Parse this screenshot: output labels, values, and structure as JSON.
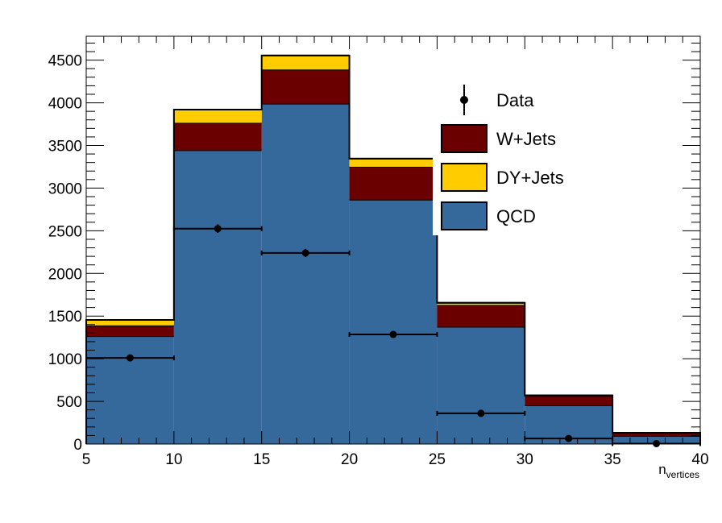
{
  "chart_data": {
    "type": "bar",
    "stacked": true,
    "bin_edges": [
      5,
      10,
      15,
      20,
      25,
      30,
      35,
      40
    ],
    "xlim": [
      5,
      40
    ],
    "ylim": [
      0,
      4780
    ],
    "xticks": [
      5,
      10,
      15,
      20,
      25,
      30,
      35,
      40
    ],
    "yticks": [
      0,
      500,
      1000,
      1500,
      2000,
      2500,
      3000,
      3500,
      4000,
      4500
    ],
    "xlabel": "n",
    "xlabel_sub": "vertices",
    "ylabel": "",
    "title": "",
    "legend_position": "top-right",
    "series": [
      {
        "name": "QCD",
        "color": "#35689b",
        "values": [
          1265,
          3445,
          3990,
          2865,
          1375,
          455,
          95
        ]
      },
      {
        "name": "W+Jets",
        "color": "#6b0000",
        "values": [
          125,
          320,
          400,
          385,
          255,
          110,
          35
        ]
      },
      {
        "name": "DY+Jets",
        "color": "#ffcc00",
        "values": [
          65,
          155,
          165,
          95,
          25,
          5,
          2
        ]
      }
    ],
    "data_points": {
      "name": "Data",
      "x": [
        7.5,
        12.5,
        17.5,
        22.5,
        27.5,
        32.5,
        37.5
      ],
      "y": [
        1010,
        2525,
        2240,
        1285,
        360,
        65,
        5
      ],
      "yerr": [
        32,
        50,
        47,
        36,
        19,
        8,
        2
      ]
    },
    "legend": [
      {
        "label": "Data",
        "kind": "marker"
      },
      {
        "label": "W+Jets",
        "kind": "box",
        "color": "#6b0000"
      },
      {
        "label": "DY+Jets",
        "kind": "box",
        "color": "#ffcc00"
      },
      {
        "label": "QCD",
        "kind": "box",
        "color": "#35689b"
      }
    ]
  }
}
